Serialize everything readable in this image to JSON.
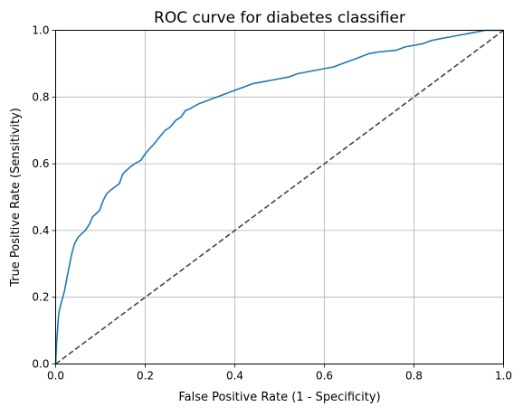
{
  "chart_data": {
    "type": "line",
    "title": "ROC curve for diabetes classifier",
    "xlabel": "False Positive Rate (1 - Specificity)",
    "ylabel": "True Positive Rate (Sensitivity)",
    "xlim": [
      0.0,
      1.0
    ],
    "ylim": [
      0.0,
      1.0
    ],
    "x_ticks": [
      0.0,
      0.2,
      0.4,
      0.6,
      0.8,
      1.0
    ],
    "y_ticks": [
      0.0,
      0.2,
      0.4,
      0.6,
      0.8,
      1.0
    ],
    "x_tick_labels": [
      "0.0",
      "0.2",
      "0.4",
      "0.6",
      "0.8",
      "1.0"
    ],
    "y_tick_labels": [
      "0.0",
      "0.2",
      "0.4",
      "0.6",
      "0.8",
      "1.0"
    ],
    "grid": true,
    "legend": "none",
    "series": [
      {
        "line_style": "solid",
        "color": "#1f77b4",
        "x": [
          0.0,
          0.002,
          0.004,
          0.006,
          0.008,
          0.012,
          0.016,
          0.02,
          0.024,
          0.03,
          0.036,
          0.042,
          0.05,
          0.058,
          0.066,
          0.076,
          0.082,
          0.09,
          0.098,
          0.106,
          0.114,
          0.122,
          0.132,
          0.142,
          0.15,
          0.158,
          0.166,
          0.176,
          0.19,
          0.2,
          0.21,
          0.22,
          0.232,
          0.244,
          0.256,
          0.268,
          0.28,
          0.29,
          0.3,
          0.306,
          0.32,
          0.34,
          0.36,
          0.38,
          0.4,
          0.42,
          0.44,
          0.46,
          0.48,
          0.5,
          0.52,
          0.54,
          0.56,
          0.6,
          0.62,
          0.64,
          0.66,
          0.68,
          0.7,
          0.72,
          0.76,
          0.78,
          0.8,
          0.82,
          0.84,
          0.86,
          0.88,
          0.9,
          0.92,
          0.94,
          0.96,
          0.98,
          1.0
        ],
        "y": [
          0.0,
          0.06,
          0.1,
          0.14,
          0.16,
          0.18,
          0.2,
          0.22,
          0.25,
          0.29,
          0.33,
          0.36,
          0.38,
          0.39,
          0.4,
          0.42,
          0.44,
          0.45,
          0.46,
          0.49,
          0.51,
          0.52,
          0.53,
          0.54,
          0.57,
          0.58,
          0.59,
          0.6,
          0.61,
          0.63,
          0.645,
          0.66,
          0.68,
          0.7,
          0.71,
          0.73,
          0.74,
          0.76,
          0.765,
          0.77,
          0.78,
          0.79,
          0.8,
          0.81,
          0.82,
          0.83,
          0.84,
          0.845,
          0.85,
          0.855,
          0.86,
          0.87,
          0.875,
          0.885,
          0.89,
          0.9,
          0.91,
          0.92,
          0.93,
          0.935,
          0.94,
          0.95,
          0.955,
          0.96,
          0.97,
          0.975,
          0.98,
          0.985,
          0.99,
          0.995,
          1.0,
          1.0,
          1.0
        ]
      },
      {
        "line_style": "dashed",
        "color": "#444444",
        "x": [
          0.0,
          1.0
        ],
        "y": [
          0.0,
          1.0
        ]
      }
    ]
  }
}
